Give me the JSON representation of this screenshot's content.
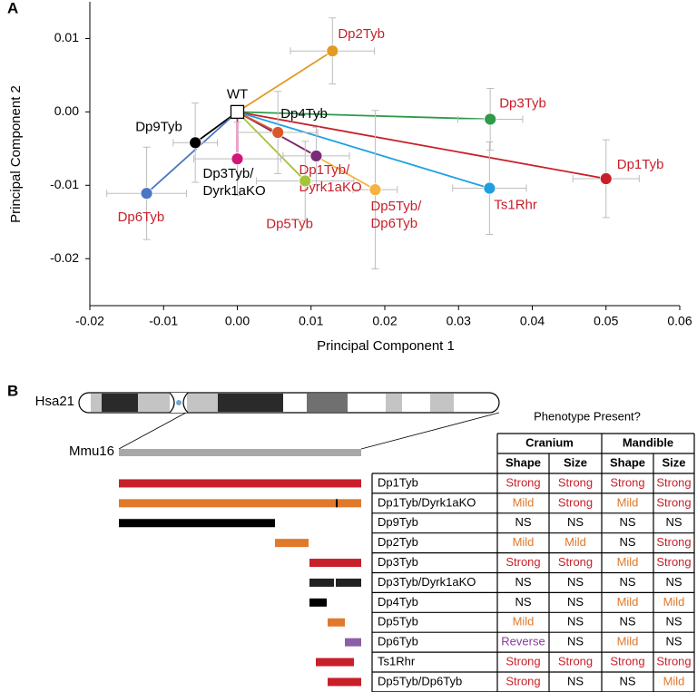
{
  "chart_data": {
    "type": "scatter",
    "panel_label": "A",
    "xlabel": "Principal Component 1",
    "ylabel": "Principal Component 2",
    "xlim": [
      -0.02,
      0.06
    ],
    "ylim": [
      -0.0264,
      0.015
    ],
    "xticks": [
      -0.02,
      -0.01,
      {
        "value": 0,
        "label": "0.00"
      },
      0.01,
      0.02,
      0.03,
      0.04,
      0.05,
      0.06
    ],
    "yticks": [
      0.01,
      {
        "value": 0,
        "label": "0.00"
      },
      -0.01,
      -0.02
    ],
    "error_color": "#bdbdbd",
    "reference": {
      "label": "WT",
      "x": 0,
      "y": 0,
      "label_color": "#000000"
    },
    "points": [
      {
        "label": [
          "Dp2Tyb"
        ],
        "x": 0.0129,
        "y": 0.0083,
        "xerr": 0.0057,
        "yerr": 0.0045,
        "color": "#e39a23",
        "label_color": "#c8202a"
      },
      {
        "label": [
          "Dp3Tyb"
        ],
        "x": 0.0343,
        "y": -0.001,
        "xerr": 0.0044,
        "yerr": 0.0042,
        "color": "#2e9a4a",
        "label_color": "#c8202a"
      },
      {
        "label": [
          "Dp1Tyb"
        ],
        "x": 0.05,
        "y": -0.0091,
        "xerr": 0.0045,
        "yerr": 0.0053,
        "color": "#c8202a",
        "label_color": "#c8202a"
      },
      {
        "label": [
          "Ts1Rhr"
        ],
        "x": 0.0342,
        "y": -0.0104,
        "xerr": 0.005,
        "yerr": 0.0063,
        "color": "#1ea0e0",
        "label_color": "#c8202a"
      },
      {
        "label": [
          "Dp5Tyb/",
          "Dp6Tyb"
        ],
        "x": 0.0187,
        "y": -0.0106,
        "xerr": 0.003,
        "yerr": 0.0108,
        "color": "#f5b342",
        "label_color": "#c8202a"
      },
      {
        "label": [
          "Dp1Tyb/",
          "Dyrk1aKO"
        ],
        "x": 0.0107,
        "y": -0.006,
        "xerr": 0.0045,
        "yerr": 0.0039,
        "color": "#7b2a7a",
        "label_color": "#c8202a"
      },
      {
        "label": [
          "Dp4Tyb"
        ],
        "x": 0.0055,
        "y": -0.0028,
        "xerr": 0.0054,
        "yerr": 0.0056,
        "color": "#d9572a",
        "label_color": "#000000"
      },
      {
        "label": [
          "Dp5Tyb"
        ],
        "x": 0.0092,
        "y": -0.0094,
        "xerr": 0.0066,
        "yerr": 0.0054,
        "color": "#a4c43a",
        "label_color": "#c8202a"
      },
      {
        "label": [
          "Dp3Tyb/",
          "Dyrk1aKO"
        ],
        "x": 0.0,
        "y": -0.0064,
        "xerr": 0.0059,
        "yerr": 0.005,
        "color": "#d0187a",
        "label_color": "#000000"
      },
      {
        "label": [
          "Dp9Tyb"
        ],
        "x": -0.0057,
        "y": -0.0042,
        "xerr": 0.003,
        "yerr": 0.0054,
        "color": "#000000",
        "label_color": "#000000"
      },
      {
        "label": [
          "Dp6Tyb"
        ],
        "x": -0.0123,
        "y": -0.0111,
        "xerr": 0.0054,
        "yerr": 0.0063,
        "color": "#4a76c4",
        "label_color": "#c8202a"
      }
    ]
  },
  "panel_b": {
    "panel_label": "B",
    "human_chromosome": "Hsa21",
    "mouse_chromosome": "Mmu16",
    "table_title": "Phenotype Present?",
    "groups": [
      "Cranium",
      "Mandible"
    ],
    "columns": [
      "Shape",
      "Size",
      "Shape",
      "Size"
    ],
    "cell_colors": {
      "Strong": "#c8202a",
      "Mild": "#e0792b",
      "NS": "#000000",
      "Reverse": "#8b3a9c"
    },
    "rows": [
      {
        "name": "Dp1Tyb",
        "cells": [
          "Strong",
          "Strong",
          "Strong",
          "Strong"
        ],
        "bar_color": "#c8202a"
      },
      {
        "name": "Dp1Tyb/Dyrk1aKO",
        "cells": [
          "Mild",
          "Strong",
          "Mild",
          "Strong"
        ],
        "bar_color": "#e0792b"
      },
      {
        "name": "Dp9Tyb",
        "cells": [
          "NS",
          "NS",
          "NS",
          "NS"
        ],
        "bar_color": "#000000"
      },
      {
        "name": "Dp2Tyb",
        "cells": [
          "Mild",
          "Mild",
          "NS",
          "Strong"
        ],
        "bar_color": "#e0792b"
      },
      {
        "name": "Dp3Tyb",
        "cells": [
          "Strong",
          "Strong",
          "Mild",
          "Strong"
        ],
        "bar_color": "#c8202a"
      },
      {
        "name": "Dp3Tyb/Dyrk1aKO",
        "cells": [
          "NS",
          "NS",
          "NS",
          "NS"
        ],
        "bar_color": "#222222"
      },
      {
        "name": "Dp4Tyb",
        "cells": [
          "NS",
          "NS",
          "Mild",
          "Mild"
        ],
        "bar_color": "#000000"
      },
      {
        "name": "Dp5Tyb",
        "cells": [
          "Mild",
          "NS",
          "NS",
          "NS"
        ],
        "bar_color": "#e0792b"
      },
      {
        "name": "Dp6Tyb",
        "cells": [
          "Reverse",
          "NS",
          "Mild",
          "NS"
        ],
        "bar_color": "#8b5fa8"
      },
      {
        "name": "Ts1Rhr",
        "cells": [
          "Strong",
          "Strong",
          "Strong",
          "Strong"
        ],
        "bar_color": "#c8202a"
      },
      {
        "name": "Dp5Tyb/Dp6Tyb",
        "cells": [
          "Strong",
          "NS",
          "NS",
          "Mild"
        ],
        "bar_color": "#c8202a"
      }
    ]
  }
}
